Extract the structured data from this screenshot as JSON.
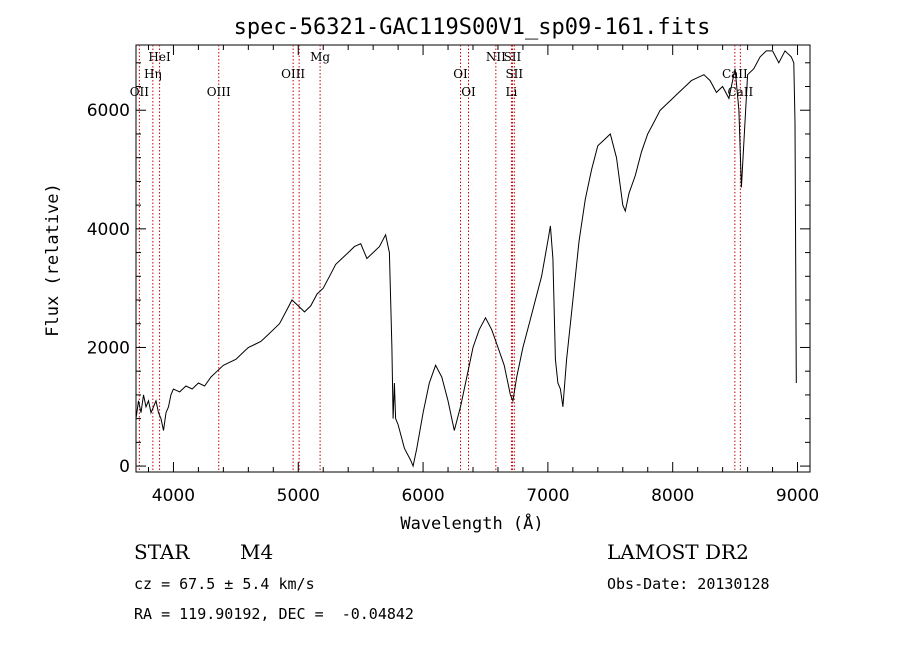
{
  "chart_data": {
    "type": "line",
    "title": "spec-56321-GAC119S00V1_sp09-161.fits",
    "xlabel": "Wavelength (Å)",
    "ylabel": "Flux (relative)",
    "xlim": [
      3700,
      9100
    ],
    "ylim": [
      -100,
      7100
    ],
    "x_ticks": [
      4000,
      5000,
      6000,
      7000,
      8000,
      9000
    ],
    "y_ticks": [
      0,
      2000,
      4000,
      6000
    ],
    "x_tick_labels": [
      "4000",
      "5000",
      "6000",
      "7000",
      "8000",
      "9000"
    ],
    "y_tick_labels": [
      "0",
      "2000",
      "4000",
      "6000"
    ],
    "grid": false,
    "series": [
      {
        "x": [
          3700,
          3720,
          3740,
          3760,
          3780,
          3800,
          3820,
          3840,
          3860,
          3880,
          3900,
          3920,
          3940,
          3960,
          3980,
          4000,
          4050,
          4100,
          4150,
          4200,
          4250,
          4300,
          4350,
          4400,
          4450,
          4500,
          4550,
          4600,
          4650,
          4700,
          4750,
          4800,
          4850,
          4900,
          4950,
          5000,
          5050,
          5100,
          5150,
          5200,
          5250,
          5300,
          5350,
          5400,
          5450,
          5500,
          5550,
          5600,
          5650,
          5700,
          5730,
          5750,
          5760,
          5770,
          5780,
          5800,
          5850,
          5900,
          5920,
          5950,
          6000,
          6050,
          6100,
          6150,
          6200,
          6250,
          6300,
          6350,
          6400,
          6450,
          6500,
          6550,
          6600,
          6650,
          6700,
          6720,
          6750,
          6800,
          6850,
          6900,
          6950,
          7000,
          7020,
          7040,
          7060,
          7080,
          7100,
          7120,
          7150,
          7200,
          7250,
          7300,
          7350,
          7400,
          7450,
          7500,
          7550,
          7600,
          7620,
          7650,
          7700,
          7750,
          7800,
          7850,
          7900,
          7950,
          8000,
          8050,
          8100,
          8150,
          8200,
          8250,
          8300,
          8350,
          8400,
          8450,
          8500,
          8530,
          8550,
          8600,
          8650,
          8700,
          8750,
          8800,
          8850,
          8900,
          8950,
          8970,
          8980,
          8990
        ],
        "y": [
          800,
          1100,
          900,
          1200,
          1000,
          1100,
          900,
          1000,
          1100,
          900,
          800,
          600,
          900,
          1000,
          1200,
          1300,
          1250,
          1350,
          1300,
          1400,
          1350,
          1500,
          1600,
          1700,
          1750,
          1800,
          1900,
          2000,
          2050,
          2100,
          2200,
          2300,
          2400,
          2600,
          2800,
          2700,
          2600,
          2700,
          2900,
          3000,
          3200,
          3400,
          3500,
          3600,
          3700,
          3750,
          3500,
          3600,
          3700,
          3900,
          3600,
          2000,
          800,
          1400,
          800,
          700,
          300,
          100,
          0,
          300,
          900,
          1400,
          1700,
          1500,
          1100,
          600,
          1000,
          1500,
          2000,
          2300,
          2500,
          2300,
          2000,
          1700,
          1200,
          1100,
          1500,
          2000,
          2400,
          2800,
          3200,
          3800,
          4050,
          3500,
          1800,
          1400,
          1300,
          1000,
          1800,
          2800,
          3800,
          4500,
          5000,
          5400,
          5500,
          5600,
          5200,
          4400,
          4300,
          4600,
          4900,
          5300,
          5600,
          5800,
          6000,
          6100,
          6200,
          6300,
          6400,
          6500,
          6550,
          6600,
          6500,
          6300,
          6400,
          6200,
          6700,
          6000,
          4700,
          6600,
          6700,
          6900,
          7000,
          7000,
          6800,
          7000,
          6900,
          6800,
          5800,
          1400
        ]
      }
    ],
    "lines": [
      {
        "label": "OII",
        "x": 3727
      },
      {
        "label": "Hη",
        "x": 3835
      },
      {
        "label": "HeI",
        "x": 3889
      },
      {
        "label": "OIII",
        "x": 4363
      },
      {
        "label": "OIII",
        "x": 4959
      },
      {
        "label": "OIII",
        "x": 5007
      },
      {
        "label": "Mg",
        "x": 5175
      },
      {
        "label": "OI",
        "x": 6300
      },
      {
        "label": "OI",
        "x": 6364
      },
      {
        "label": "NII",
        "x": 6583
      },
      {
        "label": "SII",
        "x": 6716
      },
      {
        "label": "SII",
        "x": 6731
      },
      {
        "label": "Li",
        "x": 6708
      },
      {
        "label": "CaII",
        "x": 8498
      },
      {
        "label": "CaII",
        "x": 8542
      }
    ]
  },
  "info": {
    "class": "STAR",
    "subclass": "M4",
    "survey": "LAMOST DR2",
    "cz": "cz = 67.5 ± 5.4 km/s",
    "obs_date": "Obs-Date: 20130128",
    "coords": "RA = 119.90192, DEC =  -0.04842"
  }
}
